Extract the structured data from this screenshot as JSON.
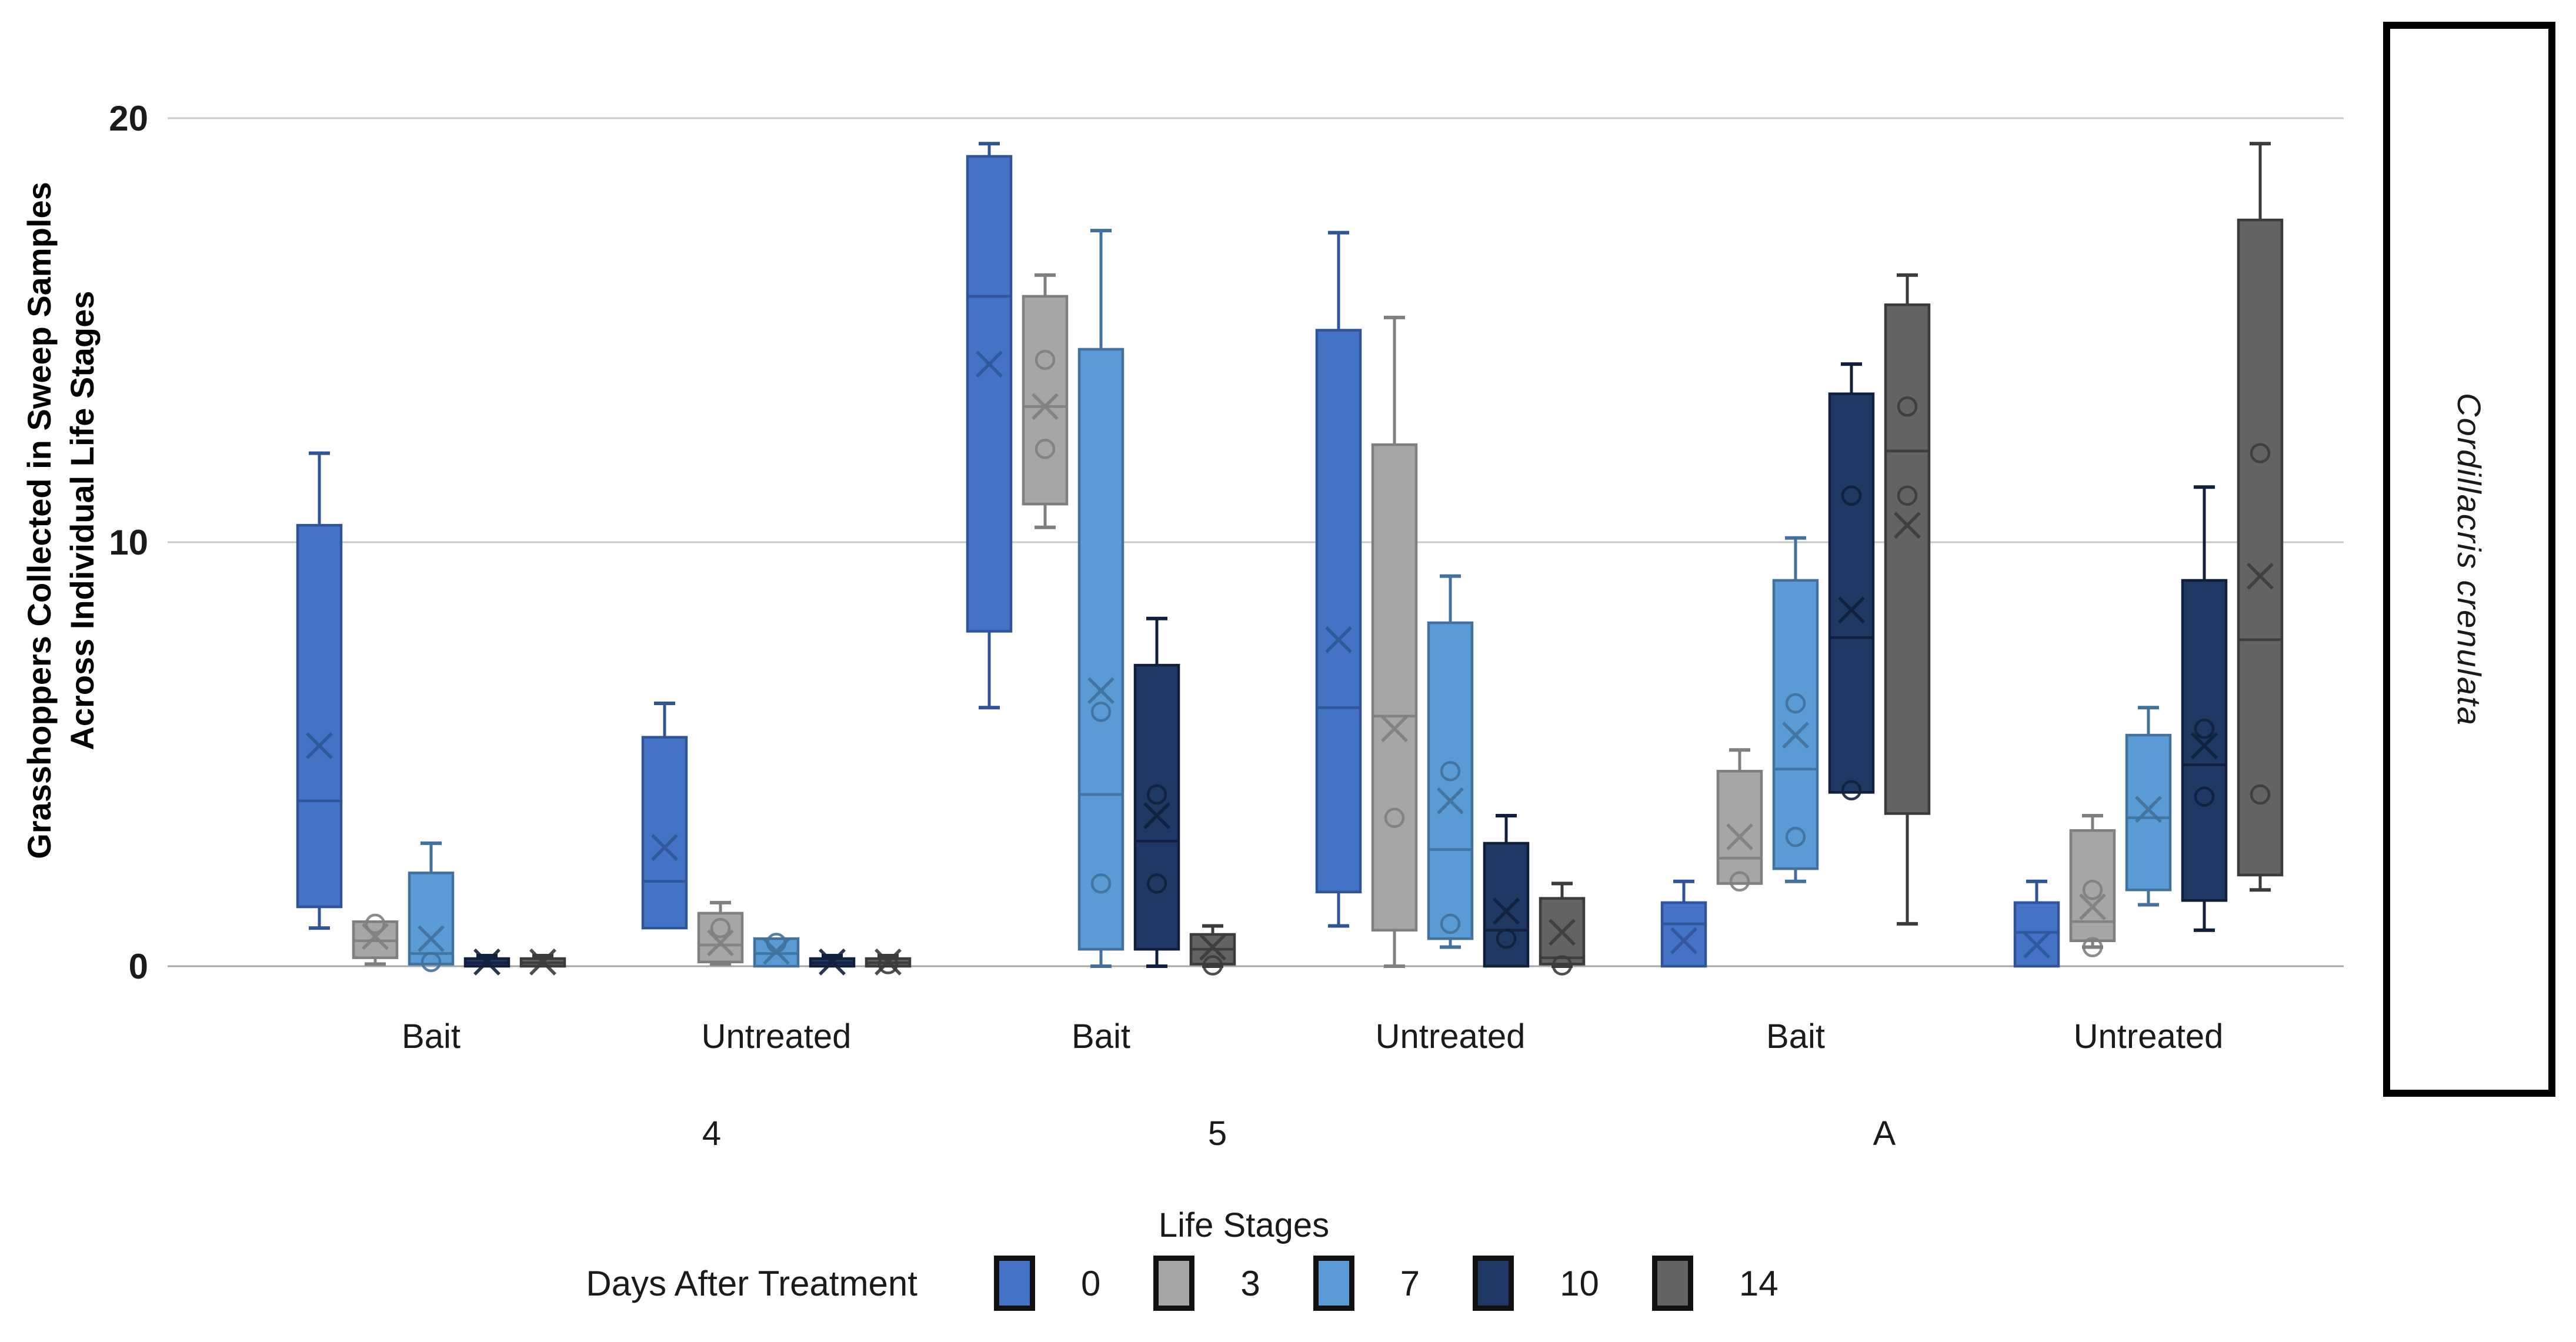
{
  "chart_data": {
    "type": "boxplot",
    "title": "",
    "ylabel": "Grasshoppers Collected in Sweep Samples Across Individual Life Stages",
    "ylabel_lines": [
      "Grasshoppers Collected in Sweep Samples",
      "Across Individual Life Stages"
    ],
    "xlabel": "Life Stages",
    "right_panel_label": "Cordillacris crenulata",
    "y_axis": {
      "min": 0,
      "max": 20,
      "ticks": [
        20,
        10,
        0
      ],
      "gridlines": true
    },
    "x_axis": {
      "stage_labels": [
        "4",
        "5",
        "A"
      ],
      "treatment_labels": [
        "Bait",
        "Untreated",
        "Bait",
        "Untreated",
        "Bait",
        "Untreated"
      ]
    },
    "legend": {
      "title": "Days After Treatment",
      "position": "bottom",
      "entries": [
        {
          "label": "0",
          "fill": "#4472C4",
          "stroke": "#2F5597"
        },
        {
          "label": "3",
          "fill": "#A6A6A6",
          "stroke": "#7F7F7F"
        },
        {
          "label": "7",
          "fill": "#5B9BD5",
          "stroke": "#41719C"
        },
        {
          "label": "10",
          "fill": "#1F3864",
          "stroke": "#101F3C"
        },
        {
          "label": "14",
          "fill": "#636363",
          "stroke": "#3B3B3B"
        }
      ]
    },
    "groups": [
      {
        "stage": "4",
        "treatment": "Bait",
        "boxes": [
          {
            "series": "0",
            "whisker_low": 0.9,
            "q1": 1.4,
            "median": 3.9,
            "q3": 10.4,
            "whisker_high": 12.1,
            "mean": 5.2,
            "outliers": []
          },
          {
            "series": "3",
            "whisker_low": 0.05,
            "q1": 0.2,
            "median": 0.6,
            "q3": 1.05,
            "whisker_high": 1.05,
            "mean": 0.7,
            "outliers": [
              1.0
            ]
          },
          {
            "series": "7",
            "whisker_low": 0.05,
            "q1": 0.05,
            "median": 0.3,
            "q3": 2.2,
            "whisker_high": 2.9,
            "mean": 0.65,
            "outliers": [
              0.1
            ]
          },
          {
            "series": "10",
            "whisker_low": 0.0,
            "q1": 0.0,
            "median": 0.08,
            "q3": 0.18,
            "whisker_high": 0.25,
            "mean": 0.1,
            "outliers": []
          },
          {
            "series": "14",
            "whisker_low": 0.0,
            "q1": 0.0,
            "median": 0.08,
            "q3": 0.18,
            "whisker_high": 0.25,
            "mean": 0.1,
            "outliers": []
          }
        ]
      },
      {
        "stage": "4",
        "treatment": "Untreated",
        "boxes": [
          {
            "series": "0",
            "whisker_low": 0.9,
            "q1": 0.9,
            "median": 2.0,
            "q3": 5.4,
            "whisker_high": 6.2,
            "mean": 2.8,
            "outliers": []
          },
          {
            "series": "3",
            "whisker_low": 0.05,
            "q1": 0.1,
            "median": 0.5,
            "q3": 1.25,
            "whisker_high": 1.5,
            "mean": 0.55,
            "outliers": [
              0.9
            ]
          },
          {
            "series": "7",
            "whisker_low": 0.0,
            "q1": 0.0,
            "median": 0.3,
            "q3": 0.65,
            "whisker_high": 0.65,
            "mean": 0.35,
            "outliers": [
              0.55
            ]
          },
          {
            "series": "10",
            "whisker_low": 0.0,
            "q1": 0.0,
            "median": 0.08,
            "q3": 0.18,
            "whisker_high": 0.25,
            "mean": 0.1,
            "outliers": []
          },
          {
            "series": "14",
            "whisker_low": 0.0,
            "q1": 0.0,
            "median": 0.08,
            "q3": 0.18,
            "whisker_high": 0.25,
            "mean": 0.1,
            "outliers": [
              0.05
            ]
          }
        ]
      },
      {
        "stage": "5",
        "treatment": "Bait",
        "boxes": [
          {
            "series": "0",
            "whisker_low": 6.1,
            "q1": 7.9,
            "median": 15.8,
            "q3": 19.1,
            "whisker_high": 19.4,
            "mean": 14.2,
            "outliers": []
          },
          {
            "series": "3",
            "whisker_low": 10.35,
            "q1": 10.9,
            "median": 13.2,
            "q3": 15.8,
            "whisker_high": 16.3,
            "mean": 13.2,
            "outliers": [
              14.3,
              12.2
            ]
          },
          {
            "series": "7",
            "whisker_low": 0.0,
            "q1": 0.4,
            "median": 4.05,
            "q3": 14.55,
            "whisker_high": 17.35,
            "mean": 6.5,
            "outliers": [
              6.0,
              1.95
            ]
          },
          {
            "series": "10",
            "whisker_low": 0.0,
            "q1": 0.4,
            "median": 2.95,
            "q3": 7.1,
            "whisker_high": 8.2,
            "mean": 3.55,
            "outliers": [
              4.05,
              1.95
            ]
          },
          {
            "series": "14",
            "whisker_low": 0.0,
            "q1": 0.05,
            "median": 0.4,
            "q3": 0.75,
            "whisker_high": 0.95,
            "mean": 0.45,
            "outliers": [
              0.02
            ]
          }
        ]
      },
      {
        "stage": "5",
        "treatment": "Untreated",
        "boxes": [
          {
            "series": "0",
            "whisker_low": 0.95,
            "q1": 1.75,
            "median": 6.1,
            "q3": 15.0,
            "whisker_high": 17.3,
            "mean": 7.7,
            "outliers": []
          },
          {
            "series": "3",
            "whisker_low": 0.0,
            "q1": 0.85,
            "median": 5.9,
            "q3": 12.3,
            "whisker_high": 15.3,
            "mean": 5.6,
            "outliers": [
              3.5
            ]
          },
          {
            "series": "7",
            "whisker_low": 0.45,
            "q1": 0.65,
            "median": 2.75,
            "q3": 8.1,
            "whisker_high": 9.2,
            "mean": 3.9,
            "outliers": [
              4.6,
              1.0
            ]
          },
          {
            "series": "10",
            "whisker_low": 0.0,
            "q1": 0.0,
            "median": 0.85,
            "q3": 2.9,
            "whisker_high": 3.55,
            "mean": 1.3,
            "outliers": [
              0.65
            ]
          },
          {
            "series": "14",
            "whisker_low": 0.0,
            "q1": 0.05,
            "median": 0.2,
            "q3": 1.6,
            "whisker_high": 1.95,
            "mean": 0.8,
            "outliers": [
              0.02
            ]
          }
        ]
      },
      {
        "stage": "A",
        "treatment": "Bait",
        "boxes": [
          {
            "series": "0",
            "whisker_low": 0.0,
            "q1": 0.0,
            "median": 1.0,
            "q3": 1.5,
            "whisker_high": 2.0,
            "mean": 0.6,
            "outliers": []
          },
          {
            "series": "3",
            "whisker_low": 1.95,
            "q1": 1.95,
            "median": 2.55,
            "q3": 4.6,
            "whisker_high": 5.1,
            "mean": 3.05,
            "outliers": [
              2.0
            ]
          },
          {
            "series": "7",
            "whisker_low": 2.0,
            "q1": 2.3,
            "median": 4.65,
            "q3": 9.1,
            "whisker_high": 10.1,
            "mean": 5.45,
            "outliers": [
              6.2,
              3.05
            ]
          },
          {
            "series": "10",
            "whisker_low": 4.1,
            "q1": 4.1,
            "median": 7.75,
            "q3": 13.5,
            "whisker_high": 14.2,
            "mean": 8.4,
            "outliers": [
              11.1,
              4.15
            ]
          },
          {
            "series": "14",
            "whisker_low": 1.0,
            "q1": 3.6,
            "median": 12.15,
            "q3": 15.6,
            "whisker_high": 16.3,
            "mean": 10.4,
            "outliers": [
              13.2,
              11.1
            ]
          }
        ]
      },
      {
        "stage": "A",
        "treatment": "Untreated",
        "boxes": [
          {
            "series": "0",
            "whisker_low": 0.0,
            "q1": 0.0,
            "median": 0.8,
            "q3": 1.5,
            "whisker_high": 2.0,
            "mean": 0.5,
            "outliers": []
          },
          {
            "series": "3",
            "whisker_low": 0.45,
            "q1": 0.6,
            "median": 1.05,
            "q3": 3.2,
            "whisker_high": 3.55,
            "mean": 1.4,
            "outliers": [
              1.8,
              0.45
            ]
          },
          {
            "series": "7",
            "whisker_low": 1.45,
            "q1": 1.8,
            "median": 3.5,
            "q3": 5.45,
            "whisker_high": 6.1,
            "mean": 3.7,
            "outliers": []
          },
          {
            "series": "10",
            "whisker_low": 0.85,
            "q1": 1.55,
            "median": 4.75,
            "q3": 9.1,
            "whisker_high": 11.3,
            "mean": 5.2,
            "outliers": [
              5.6,
              4.0
            ]
          },
          {
            "series": "14",
            "whisker_low": 1.8,
            "q1": 2.15,
            "median": 7.7,
            "q3": 17.6,
            "whisker_high": 19.4,
            "mean": 9.2,
            "outliers": [
              12.1,
              4.05
            ]
          }
        ]
      }
    ]
  }
}
